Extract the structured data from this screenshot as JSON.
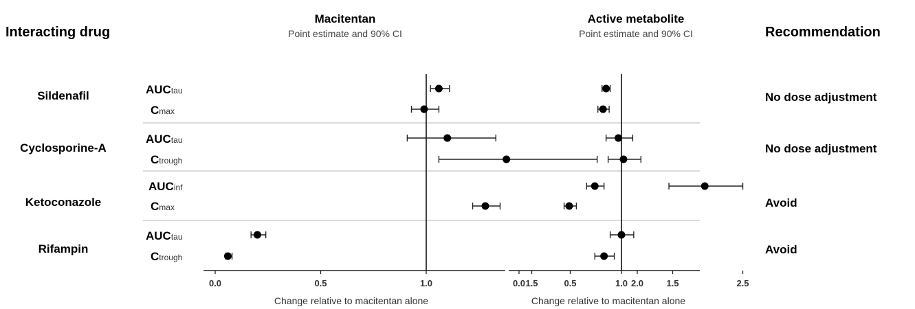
{
  "headers": {
    "interacting_drug": "Interacting drug",
    "recommendation": "Recommendation"
  },
  "chart_data": [
    {
      "type": "forest",
      "title": "Macitentan",
      "subtitle": "Point estimate and 90% CI",
      "xlabel": "Change relative to macitentan alone",
      "xlim": [
        0.0,
        2.7
      ],
      "xticks": [
        "0.0",
        "0.5",
        "1.0",
        "1.5",
        "2.0",
        "2.5"
      ],
      "reference_line": 1.0,
      "rows": [
        {
          "drug": "Sildenafil",
          "param": "AUC",
          "sub": "tau",
          "est": 1.06,
          "lo": 1.02,
          "hi": 1.11
        },
        {
          "drug": "Sildenafil",
          "param": "C",
          "sub": "max",
          "est": 0.99,
          "lo": 0.93,
          "hi": 1.06
        },
        {
          "drug": "Cyclosporine-A",
          "param": "AUC",
          "sub": "tau",
          "est": 1.1,
          "lo": 0.91,
          "hi": 1.33
        },
        {
          "drug": "Cyclosporine-A",
          "param": "C",
          "sub": "trough",
          "est": 1.38,
          "lo": 1.06,
          "hi": 1.81
        },
        {
          "drug": "Ketoconazole",
          "param": "AUC",
          "sub": "inf",
          "est": 2.32,
          "lo": 2.15,
          "hi": 2.5
        },
        {
          "drug": "Ketoconazole",
          "param": "C",
          "sub": "max",
          "est": 1.28,
          "lo": 1.22,
          "hi": 1.35
        },
        {
          "drug": "Rifampin",
          "param": "AUC",
          "sub": "tau",
          "est": 0.2,
          "lo": 0.17,
          "hi": 0.24
        },
        {
          "drug": "Rifampin",
          "param": "C",
          "sub": "trough",
          "est": 0.06,
          "lo": 0.05,
          "hi": 0.08
        }
      ]
    },
    {
      "type": "forest",
      "title": "Active metabolite",
      "subtitle": "Point estimate and 90% CI",
      "xlabel": "Change relative to macitentan alone",
      "xlim": [
        0.0,
        1.75
      ],
      "xticks": [
        "0.0",
        "0.5",
        "1.0",
        "1.5"
      ],
      "reference_line": 1.0,
      "rows": [
        {
          "drug": "Sildenafil",
          "param": "AUC",
          "sub": "tau",
          "est": 0.85,
          "lo": 0.81,
          "hi": 0.89
        },
        {
          "drug": "Sildenafil",
          "param": "C",
          "sub": "max",
          "est": 0.82,
          "lo": 0.77,
          "hi": 0.88
        },
        {
          "drug": "Cyclosporine-A",
          "param": "AUC",
          "sub": "tau",
          "est": 0.97,
          "lo": 0.85,
          "hi": 1.11
        },
        {
          "drug": "Cyclosporine-A",
          "param": "C",
          "sub": "trough",
          "est": 1.02,
          "lo": 0.87,
          "hi": 1.19
        },
        {
          "drug": "Ketoconazole",
          "param": "AUC",
          "sub": "inf",
          "est": 0.74,
          "lo": 0.66,
          "hi": 0.83
        },
        {
          "drug": "Ketoconazole",
          "param": "C",
          "sub": "max",
          "est": 0.49,
          "lo": 0.44,
          "hi": 0.56
        },
        {
          "drug": "Rifampin",
          "param": "AUC",
          "sub": "tau",
          "est": 1.0,
          "lo": 0.89,
          "hi": 1.12
        },
        {
          "drug": "Rifampin",
          "param": "C",
          "sub": "trough",
          "est": 0.83,
          "lo": 0.74,
          "hi": 0.93
        }
      ]
    }
  ],
  "drug_groups": [
    {
      "name": "Sildenafil",
      "recommendation": "No dose adjustment"
    },
    {
      "name": "Cyclosporine-A",
      "recommendation": "No dose adjustment"
    },
    {
      "name": "Ketoconazole",
      "recommendation": "Avoid"
    },
    {
      "name": "Rifampin",
      "recommendation": "Avoid"
    }
  ]
}
